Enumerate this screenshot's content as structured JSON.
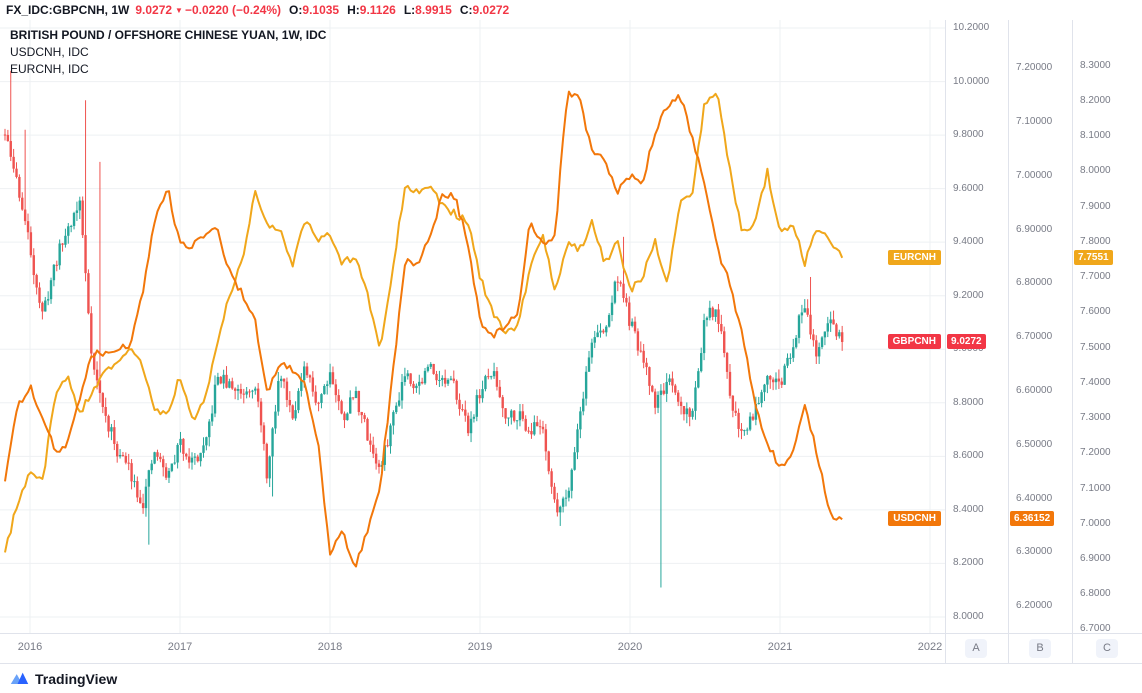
{
  "header": {
    "symbol": "FX_IDC:GBPCNH, 1W",
    "last": "9.0272",
    "arrow": "▼",
    "change": "−0.0220 (−0.24%)",
    "ohlc": [
      {
        "label": "O:",
        "value": "9.1035"
      },
      {
        "label": "H:",
        "value": "9.1126"
      },
      {
        "label": "L:",
        "value": "8.9915"
      },
      {
        "label": "C:",
        "value": "9.0272"
      }
    ]
  },
  "legend": {
    "rows": [
      {
        "text": "BRITISH POUND / OFFSHORE CHINESE YUAN, 1W, IDC"
      },
      {
        "text": "USDCNH, IDC"
      },
      {
        "text": "EURCNH, IDC"
      }
    ]
  },
  "price_tags": {
    "eurcnh": {
      "name": "EURCNH",
      "value": "7.7551",
      "color": "#F0A71B"
    },
    "gbpcnh": {
      "name": "GBPCNH",
      "value": "9.0272",
      "color": "#F23645"
    },
    "usdcnh": {
      "name": "USDCNH",
      "value": "6.36152",
      "color": "#F2770A"
    }
  },
  "scale_buttons": [
    "A",
    "B",
    "C"
  ],
  "footer": {
    "brand": "TradingView"
  },
  "chart_data": {
    "type": "mixed",
    "title": "BRITISH POUND / OFFSHORE CHINESE YUAN, 1W, IDC",
    "x_years": [
      "2016",
      "2017",
      "2018",
      "2019",
      "2020",
      "2021",
      "2022"
    ],
    "months": [
      "2015-11",
      "2015-12",
      "2016-01",
      "2016-02",
      "2016-03",
      "2016-04",
      "2016-05",
      "2016-06",
      "2016-07",
      "2016-08",
      "2016-09",
      "2016-10",
      "2016-11",
      "2016-12",
      "2017-01",
      "2017-02",
      "2017-03",
      "2017-04",
      "2017-05",
      "2017-06",
      "2017-07",
      "2017-08",
      "2017-09",
      "2017-10",
      "2017-11",
      "2017-12",
      "2018-01",
      "2018-02",
      "2018-03",
      "2018-04",
      "2018-05",
      "2018-06",
      "2018-07",
      "2018-08",
      "2018-09",
      "2018-10",
      "2018-11",
      "2018-12",
      "2019-01",
      "2019-02",
      "2019-03",
      "2019-04",
      "2019-05",
      "2019-06",
      "2019-07",
      "2019-08",
      "2019-09",
      "2019-10",
      "2019-11",
      "2019-12",
      "2020-01",
      "2020-02",
      "2020-03",
      "2020-04",
      "2020-05",
      "2020-06",
      "2020-07",
      "2020-08",
      "2020-09",
      "2020-10",
      "2020-11",
      "2020-12",
      "2021-01",
      "2021-02",
      "2021-03",
      "2021-04",
      "2021-05",
      "2021-06"
    ],
    "axes": {
      "A": {
        "owner": "GBPCNH",
        "ylim": [
          7.94,
          10.23
        ],
        "ticks": [
          "10.2000",
          "10.0000",
          "9.8000",
          "9.6000",
          "9.4000",
          "9.2000",
          "9.0000",
          "8.8000",
          "8.6000",
          "8.4000",
          "8.2000",
          "8.0000"
        ]
      },
      "B": {
        "owner": "USDCNH",
        "ylim": [
          6.15,
          7.29
        ],
        "ticks": [
          "7.20000",
          "7.10000",
          "7.00000",
          "6.90000",
          "6.80000",
          "6.70000",
          "6.60000",
          "6.50000",
          "6.40000",
          "6.30000",
          "6.20000"
        ]
      },
      "C": {
        "owner": "EURCNH",
        "ylim": [
          6.69,
          8.43
        ],
        "ticks": [
          "8.3000",
          "8.2000",
          "8.1000",
          "8.0000",
          "7.9000",
          "7.8000",
          "7.7000",
          "7.6000",
          "7.5000",
          "7.4000",
          "7.3000",
          "7.2000",
          "7.1000",
          "7.0000",
          "6.9000",
          "6.8000",
          "6.7000"
        ]
      }
    },
    "series": [
      {
        "name": "GBPCNH",
        "type": "candlestick",
        "axis": "A",
        "up_color": "#26A69A",
        "down_color": "#EF5350",
        "last": 9.0272,
        "closes": [
          9.8,
          9.62,
          9.38,
          9.12,
          9.32,
          9.45,
          9.55,
          8.95,
          8.75,
          8.62,
          8.55,
          8.42,
          8.62,
          8.52,
          8.65,
          8.58,
          8.62,
          8.9,
          8.86,
          8.84,
          8.88,
          8.52,
          8.92,
          8.76,
          8.92,
          8.8,
          8.92,
          8.74,
          8.84,
          8.68,
          8.54,
          8.74,
          8.92,
          8.86,
          8.94,
          8.88,
          8.86,
          8.7,
          8.84,
          8.92,
          8.76,
          8.76,
          8.7,
          8.72,
          8.4,
          8.46,
          8.76,
          9.05,
          9.06,
          9.28,
          9.1,
          8.96,
          8.8,
          8.88,
          8.78,
          8.76,
          9.12,
          9.14,
          8.82,
          8.68,
          8.78,
          8.92,
          8.86,
          9.02,
          9.18,
          8.96,
          9.12,
          9.0272
        ],
        "wicks": [
          {
            "month": "2015-11",
            "high": 10.04
          },
          {
            "month": "2015-12",
            "high": 9.82
          },
          {
            "month": "2016-05",
            "high": 9.93
          },
          {
            "month": "2016-06",
            "high": 9.7,
            "low": 8.8
          },
          {
            "month": "2016-10",
            "low": 8.27
          },
          {
            "month": "2017-08",
            "low": 8.45
          },
          {
            "month": "2019-07",
            "low": 8.34
          },
          {
            "month": "2019-12",
            "high": 9.42
          },
          {
            "month": "2020-03",
            "low": 8.11
          },
          {
            "month": "2021-03",
            "high": 9.27
          }
        ]
      },
      {
        "name": "EURCNH",
        "type": "line",
        "axis": "C",
        "color": "#F0A71B",
        "last": 7.7551,
        "closes": [
          6.92,
          7.06,
          7.14,
          7.12,
          7.36,
          7.42,
          7.31,
          7.38,
          7.43,
          7.45,
          7.5,
          7.45,
          7.32,
          7.31,
          7.42,
          7.29,
          7.35,
          7.52,
          7.65,
          7.75,
          7.94,
          7.85,
          7.84,
          7.73,
          7.86,
          7.81,
          7.82,
          7.74,
          7.76,
          7.65,
          7.5,
          7.72,
          7.96,
          7.94,
          7.96,
          7.9,
          7.88,
          7.86,
          7.7,
          7.6,
          7.54,
          7.56,
          7.72,
          7.82,
          7.66,
          7.8,
          7.78,
          7.86,
          7.74,
          7.8,
          7.66,
          7.7,
          7.8,
          7.68,
          7.92,
          7.94,
          8.2,
          8.22,
          8.0,
          7.82,
          7.86,
          8.0,
          7.82,
          7.86,
          7.74,
          7.84,
          7.8,
          7.7551
        ]
      },
      {
        "name": "USDCNH",
        "type": "line",
        "axis": "B",
        "color": "#F2770A",
        "last": 6.36152,
        "closes": [
          6.43,
          6.57,
          6.61,
          6.55,
          6.49,
          6.5,
          6.59,
          6.67,
          6.67,
          6.68,
          6.68,
          6.78,
          6.92,
          6.98,
          6.87,
          6.87,
          6.89,
          6.9,
          6.82,
          6.78,
          6.73,
          6.6,
          6.65,
          6.64,
          6.61,
          6.51,
          6.3,
          6.34,
          6.27,
          6.34,
          6.42,
          6.63,
          6.84,
          6.84,
          6.88,
          6.97,
          6.96,
          6.88,
          6.73,
          6.7,
          6.72,
          6.74,
          6.92,
          6.87,
          6.89,
          7.16,
          7.14,
          7.04,
          7.03,
          6.97,
          7.0,
          6.99,
          7.08,
          7.13,
          7.15,
          7.07,
          6.98,
          6.86,
          6.8,
          6.7,
          6.58,
          6.5,
          6.46,
          6.48,
          6.57,
          6.48,
          6.37,
          6.36152
        ]
      }
    ]
  }
}
